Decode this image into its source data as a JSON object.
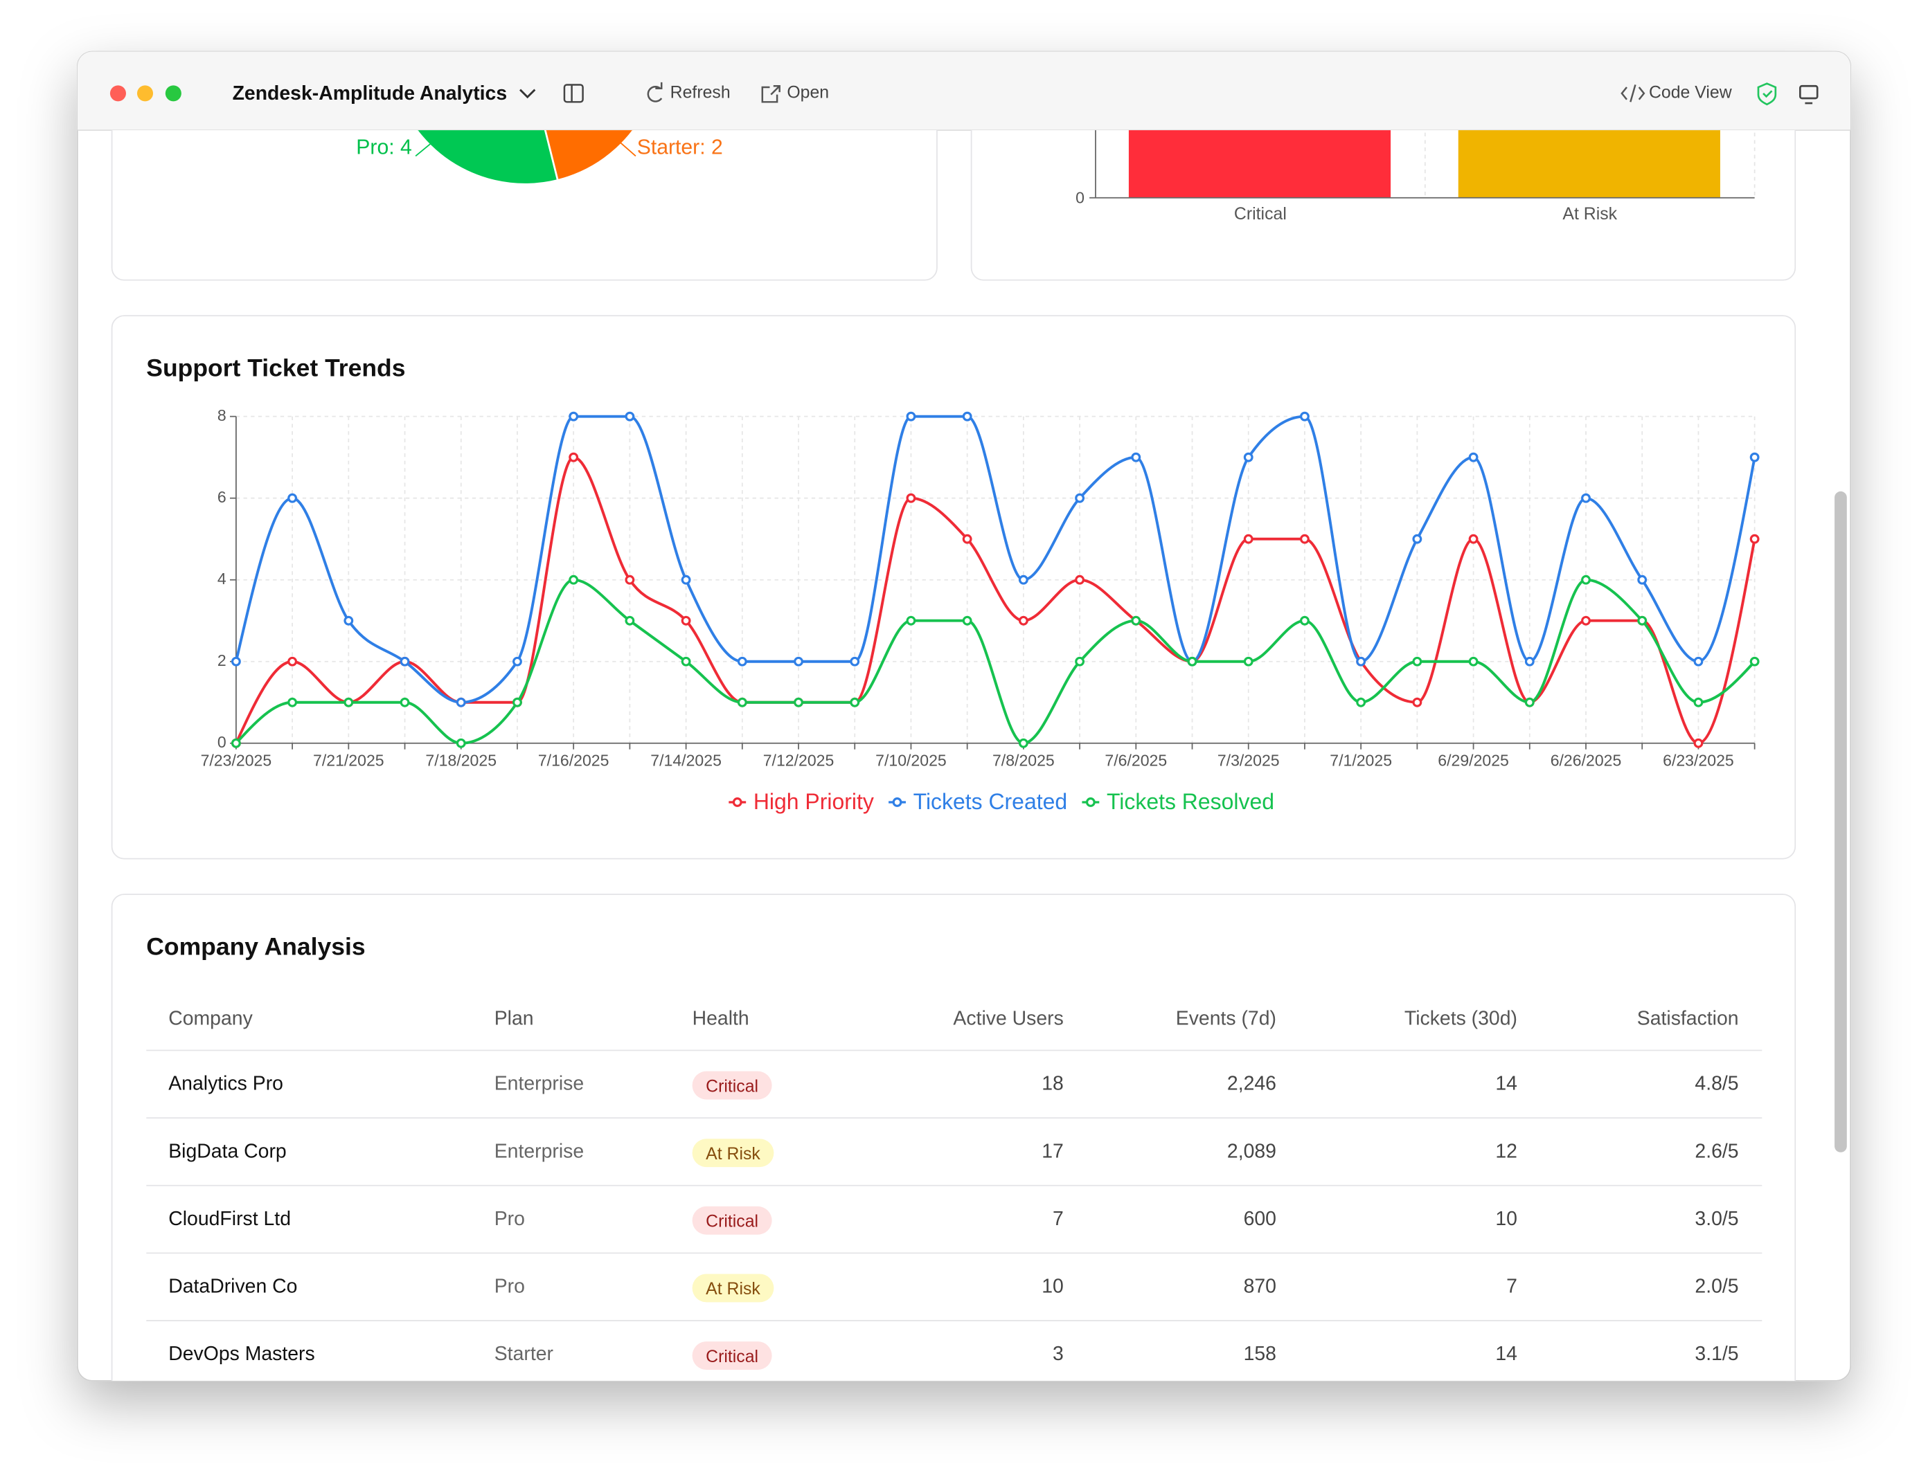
{
  "window": {
    "title": "Zendesk-Amplitude Analytics",
    "toolbar": [
      "Refresh",
      "Open",
      "Code View"
    ]
  },
  "plan_chart": {
    "labels": [
      "Pro: 4",
      "Starter: 2"
    ]
  },
  "health_chart": {
    "categories": [
      "Critical",
      "At Risk"
    ],
    "yticks": [
      0
    ]
  },
  "chart_data": {
    "type": "line",
    "title": "Support Ticket Trends",
    "categories": [
      "7/23/2025",
      null,
      "7/21/2025",
      null,
      "7/18/2025",
      null,
      "7/16/2025",
      null,
      "7/14/2025",
      null,
      "7/12/2025",
      null,
      "7/10/2025",
      null,
      "7/8/2025",
      null,
      "7/6/2025",
      null,
      "7/3/2025",
      null,
      "7/1/2025",
      null,
      "6/29/2025",
      null,
      "6/26/2025",
      null,
      "6/23/2025",
      null
    ],
    "series": [
      {
        "name": "High Priority",
        "color": "#ef2b36",
        "values": [
          0,
          2,
          1,
          2,
          1,
          1,
          7,
          4,
          3,
          1,
          1,
          1,
          6,
          5,
          3,
          4,
          3,
          2,
          5,
          5,
          2,
          1,
          5,
          1,
          3,
          3,
          0,
          5
        ]
      },
      {
        "name": "Tickets Created",
        "color": "#2f7fe6",
        "values": [
          2,
          6,
          3,
          2,
          1,
          2,
          8,
          8,
          4,
          2,
          2,
          2,
          8,
          8,
          4,
          6,
          7,
          2,
          7,
          8,
          2,
          5,
          7,
          2,
          6,
          4,
          2,
          7
        ]
      },
      {
        "name": "Tickets Resolved",
        "color": "#16c24f",
        "values": [
          0,
          1,
          1,
          1,
          0,
          1,
          4,
          3,
          2,
          1,
          1,
          1,
          3,
          3,
          0,
          2,
          3,
          2,
          2,
          3,
          1,
          2,
          2,
          1,
          4,
          3,
          1,
          2
        ]
      }
    ],
    "ylim": [
      0,
      8
    ],
    "yticks": [
      0,
      2,
      4,
      6,
      8
    ],
    "grid": true,
    "legend": "bottom"
  },
  "table": {
    "title": "Company Analysis",
    "columns": [
      "Company",
      "Plan",
      "Health",
      "Active Users",
      "Events (7d)",
      "Tickets (30d)",
      "Satisfaction"
    ],
    "rows": [
      [
        "Analytics Pro",
        "Enterprise",
        "Critical",
        "18",
        "2,246",
        "14",
        "4.8/5"
      ],
      [
        "BigData Corp",
        "Enterprise",
        "At Risk",
        "17",
        "2,089",
        "12",
        "2.6/5"
      ],
      [
        "CloudFirst Ltd",
        "Pro",
        "Critical",
        "7",
        "600",
        "10",
        "3.0/5"
      ],
      [
        "DataDriven Co",
        "Pro",
        "At Risk",
        "10",
        "870",
        "7",
        "2.0/5"
      ],
      [
        "DevOps Masters",
        "Starter",
        "Critical",
        "3",
        "158",
        "14",
        "3.1/5"
      ]
    ]
  }
}
